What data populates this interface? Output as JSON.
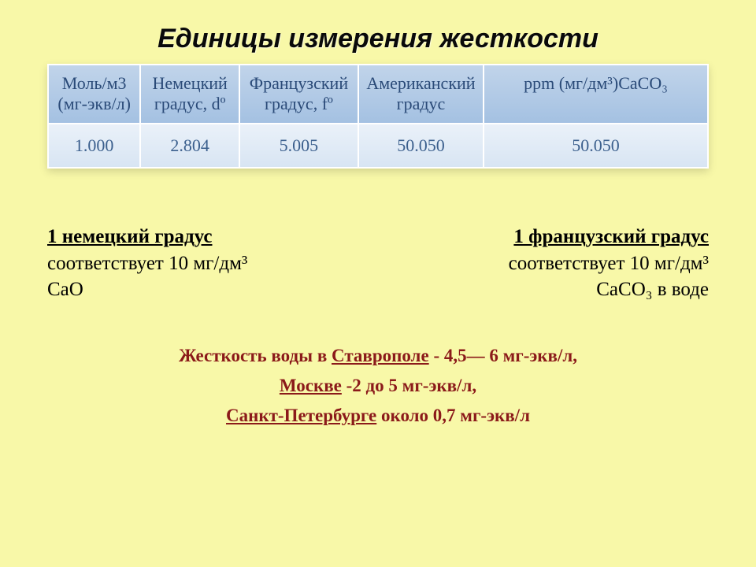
{
  "title": "Единицы измерения жесткости",
  "table": {
    "columns": [
      {
        "header": "Моль/м3 (мг-экв/л)",
        "width": "14%"
      },
      {
        "header": "Немецкий градус, dº",
        "width": "15%"
      },
      {
        "header": "Французский градус, fº",
        "width": "18%"
      },
      {
        "header": "Американский градус",
        "width": "19%"
      },
      {
        "header": "ppm (мг/дм³)CaCO₃",
        "width": "34%"
      }
    ],
    "rows": [
      [
        "1.000",
        "2.804",
        "5.005",
        "50.050",
        "50.050"
      ]
    ],
    "colors": {
      "header_bg_top": "#c1d4ea",
      "header_bg_bottom": "#a4c1e2",
      "header_text": "#2a4a78",
      "cell_bg_top": "#eaf1f9",
      "cell_bg_bottom": "#d8e5f3",
      "cell_text": "#3b5f8d",
      "border": "#ffffff"
    },
    "header_fontsize": 22,
    "cell_fontsize": 22
  },
  "definitions": {
    "left": {
      "head": "1 немецкий градус",
      "line1": "соответствует 10 мг/дм³",
      "line2": "CaO"
    },
    "right": {
      "head": "1 французский градус",
      "line1": "соответствует 10 мг/дм³",
      "line2": "CaCO₃ в воде"
    },
    "fontsize": 25,
    "text_color": "#000000"
  },
  "hardness": {
    "line1_prefix": "Жесткость воды в ",
    "line1_city": "Ставрополе",
    "line1_suffix": " - 4,5— 6 мг-экв/л,",
    "line2_city": "Москве",
    "line2_suffix": " -2 до 5 мг-экв/л,",
    "line3_city": "Санкт-Петербурге",
    "line3_suffix": " около 0,7 мг-экв/л",
    "color": "#8b1a1a",
    "fontsize": 23
  },
  "background_color": "#f8f8a8"
}
